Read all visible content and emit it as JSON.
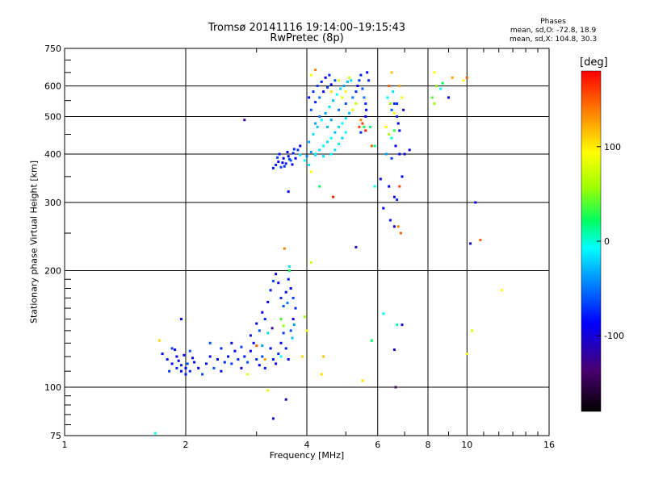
{
  "title": "Tromsø 20141116 19:14:00–19:15:43",
  "subtitle": "RwPretec (8p)",
  "info": {
    "heading": "Phases",
    "o_stats": "mean, sd,O: -72.8, 18.9",
    "x_stats": "mean, sd,X: 104.8, 30.3"
  },
  "colors": {
    "background": "#ffffff",
    "axis": "#000000"
  },
  "chart_data": {
    "type": "scatter",
    "title": "Tromsø 20141116 19:14:00–19:15:43",
    "subtitle": "RwPretec (8p)",
    "xlabel": "Frequency [MHz]",
    "ylabel": "Stationary phase Virtual Height [km]",
    "xscale": "log",
    "yscale": "log",
    "xlim": [
      1,
      16
    ],
    "ylim": [
      75,
      750
    ],
    "xticks": [
      1,
      2,
      4,
      6,
      8,
      10,
      16
    ],
    "yticks": [
      75,
      100,
      200,
      300,
      400,
      500,
      600,
      750
    ],
    "grid": true,
    "colorbar": {
      "label": "[deg]",
      "range": [
        -180,
        180
      ],
      "ticks": [
        100,
        0,
        -100
      ],
      "colormap": "rainbow"
    },
    "points": [
      [
        1.75,
        122,
        -100
      ],
      [
        1.8,
        118,
        -95
      ],
      [
        1.85,
        115,
        -100
      ],
      [
        1.9,
        112,
        -90
      ],
      [
        1.95,
        110,
        -100
      ],
      [
        2.0,
        108,
        -95
      ],
      [
        2.05,
        110,
        -90
      ],
      [
        2.1,
        116,
        -100
      ],
      [
        1.85,
        126,
        -85
      ],
      [
        1.9,
        120,
        -105
      ],
      [
        1.95,
        114,
        -90
      ],
      [
        2.0,
        112,
        -100
      ],
      [
        2.05,
        124,
        -80
      ],
      [
        1.82,
        110,
        -85
      ],
      [
        1.88,
        125,
        -100
      ],
      [
        1.92,
        117,
        -105
      ],
      [
        1.98,
        121,
        -95
      ],
      [
        2.02,
        115,
        -80
      ],
      [
        2.08,
        119,
        -105
      ],
      [
        1.95,
        150,
        -105
      ],
      [
        1.72,
        132,
        110
      ],
      [
        1.68,
        76,
        -20
      ],
      [
        2.15,
        112,
        -100
      ],
      [
        2.2,
        108,
        -85
      ],
      [
        2.25,
        115,
        -95
      ],
      [
        2.3,
        120,
        -100
      ],
      [
        2.35,
        112,
        -80
      ],
      [
        2.4,
        118,
        -100
      ],
      [
        2.45,
        110,
        -105
      ],
      [
        2.5,
        116,
        -90
      ],
      [
        2.55,
        120,
        -100
      ],
      [
        2.6,
        115,
        -85
      ],
      [
        2.65,
        124,
        -100
      ],
      [
        2.7,
        118,
        -90
      ],
      [
        2.75,
        112,
        -105
      ],
      [
        2.8,
        120,
        -95
      ],
      [
        2.85,
        116,
        -80
      ],
      [
        2.9,
        124,
        -100
      ],
      [
        2.95,
        130,
        -105
      ],
      [
        3.0,
        118,
        -90
      ],
      [
        3.05,
        114,
        -100
      ],
      [
        3.1,
        120,
        -85
      ],
      [
        3.15,
        112,
        -95
      ],
      [
        2.3,
        130,
        -80
      ],
      [
        2.45,
        126,
        -90
      ],
      [
        2.6,
        130,
        -100
      ],
      [
        2.75,
        127,
        -85
      ],
      [
        2.9,
        136,
        -95
      ],
      [
        3.0,
        146,
        -100
      ],
      [
        3.05,
        140,
        -80
      ],
      [
        3.1,
        156,
        -105
      ],
      [
        3.15,
        150,
        -90
      ],
      [
        3.2,
        166,
        -100
      ],
      [
        3.25,
        178,
        -95
      ],
      [
        3.3,
        188,
        -85
      ],
      [
        3.35,
        196,
        -105
      ],
      [
        3.4,
        186,
        -100
      ],
      [
        3.45,
        170,
        -90
      ],
      [
        3.5,
        162,
        -80
      ],
      [
        3.55,
        176,
        -100
      ],
      [
        3.6,
        190,
        -95
      ],
      [
        3.65,
        180,
        -105
      ],
      [
        3.7,
        170,
        -85
      ],
      [
        3.25,
        126,
        -100
      ],
      [
        3.3,
        118,
        -95
      ],
      [
        3.35,
        115,
        -105
      ],
      [
        3.4,
        122,
        -90
      ],
      [
        3.45,
        130,
        -100
      ],
      [
        3.5,
        138,
        -85
      ],
      [
        3.55,
        126,
        -95
      ],
      [
        3.6,
        118,
        -100
      ],
      [
        3.65,
        140,
        -80
      ],
      [
        3.7,
        150,
        -105
      ],
      [
        3.75,
        160,
        -90
      ],
      [
        3.72,
        145,
        -60
      ],
      [
        3.68,
        134,
        -50
      ],
      [
        3.45,
        150,
        40
      ],
      [
        3.5,
        144,
        55
      ],
      [
        3.2,
        138,
        -40
      ],
      [
        3.1,
        128,
        -60
      ],
      [
        3.15,
        118,
        130
      ],
      [
        2.85,
        108,
        90
      ],
      [
        3.2,
        98,
        90
      ],
      [
        3.3,
        83,
        -110
      ],
      [
        3.55,
        93,
        -120
      ],
      [
        3.45,
        120,
        -30
      ],
      [
        3.58,
        165,
        -70
      ],
      [
        3.62,
        205,
        -40
      ],
      [
        3.28,
        142,
        -130
      ],
      [
        3.0,
        128,
        150
      ],
      [
        3.52,
        228,
        140
      ],
      [
        3.62,
        200,
        20
      ],
      [
        3.95,
        152,
        60
      ],
      [
        4.0,
        140,
        90
      ],
      [
        3.9,
        120,
        110
      ],
      [
        4.4,
        120,
        120
      ],
      [
        4.35,
        108,
        110
      ],
      [
        4.1,
        210,
        80
      ],
      [
        5.5,
        104,
        110
      ],
      [
        6.2,
        155,
        -30
      ],
      [
        6.7,
        145,
        -10
      ],
      [
        6.6,
        125,
        -120
      ],
      [
        6.65,
        100,
        -140
      ],
      [
        5.8,
        132,
        20
      ],
      [
        6.9,
        145,
        -110
      ],
      [
        10.0,
        122,
        95
      ],
      [
        10.3,
        140,
        85
      ],
      [
        12.2,
        178,
        100
      ],
      [
        10.2,
        235,
        -110
      ],
      [
        10.8,
        240,
        150
      ],
      [
        3.35,
        375,
        -95
      ],
      [
        3.4,
        382,
        -100
      ],
      [
        3.45,
        370,
        -85
      ],
      [
        3.5,
        390,
        -105
      ],
      [
        3.55,
        378,
        -90
      ],
      [
        3.6,
        395,
        -100
      ],
      [
        3.65,
        385,
        -80
      ],
      [
        3.7,
        402,
        -95
      ],
      [
        3.75,
        390,
        -105
      ],
      [
        3.8,
        410,
        -90
      ],
      [
        3.85,
        420,
        -100
      ],
      [
        3.38,
        392,
        -85
      ],
      [
        3.42,
        400,
        -95
      ],
      [
        3.48,
        380,
        -100
      ],
      [
        3.52,
        372,
        -90
      ],
      [
        3.58,
        405,
        -105
      ],
      [
        3.62,
        388,
        -85
      ],
      [
        3.68,
        376,
        -100
      ],
      [
        3.72,
        412,
        -90
      ],
      [
        3.3,
        368,
        -95
      ],
      [
        4.0,
        395,
        -70
      ],
      [
        4.1,
        405,
        -60
      ],
      [
        4.2,
        398,
        -50
      ],
      [
        4.3,
        410,
        -40
      ],
      [
        4.4,
        420,
        -30
      ],
      [
        4.5,
        430,
        -40
      ],
      [
        4.6,
        440,
        -30
      ],
      [
        4.7,
        455,
        -50
      ],
      [
        4.8,
        470,
        -40
      ],
      [
        4.9,
        480,
        -30
      ],
      [
        5.0,
        495,
        -40
      ],
      [
        5.1,
        510,
        -50
      ],
      [
        5.2,
        520,
        -30
      ],
      [
        5.3,
        540,
        -40
      ],
      [
        4.05,
        430,
        -60
      ],
      [
        4.15,
        450,
        -40
      ],
      [
        4.25,
        470,
        -50
      ],
      [
        4.35,
        490,
        -30
      ],
      [
        4.45,
        510,
        -60
      ],
      [
        4.55,
        530,
        -40
      ],
      [
        4.65,
        550,
        -50
      ],
      [
        4.75,
        570,
        -30
      ],
      [
        4.85,
        590,
        -40
      ],
      [
        4.95,
        600,
        -60
      ],
      [
        5.05,
        615,
        -50
      ],
      [
        5.15,
        620,
        -40
      ],
      [
        4.1,
        520,
        -80
      ],
      [
        4.2,
        545,
        -90
      ],
      [
        4.3,
        560,
        -70
      ],
      [
        4.4,
        580,
        -100
      ],
      [
        4.5,
        595,
        -85
      ],
      [
        4.6,
        605,
        -95
      ],
      [
        4.7,
        620,
        -80
      ],
      [
        4.05,
        560,
        -100
      ],
      [
        4.15,
        580,
        -90
      ],
      [
        4.25,
        600,
        -85
      ],
      [
        4.35,
        615,
        -95
      ],
      [
        4.45,
        630,
        -100
      ],
      [
        4.55,
        640,
        -90
      ],
      [
        4.2,
        480,
        -60
      ],
      [
        4.3,
        500,
        -70
      ],
      [
        4.5,
        470,
        -50
      ],
      [
        4.6,
        490,
        -60
      ],
      [
        4.8,
        520,
        -70
      ],
      [
        5.0,
        540,
        -80
      ],
      [
        5.2,
        560,
        -70
      ],
      [
        5.3,
        580,
        -90
      ],
      [
        5.35,
        600,
        -100
      ],
      [
        5.4,
        620,
        -85
      ],
      [
        5.45,
        640,
        -95
      ],
      [
        5.5,
        590,
        -80
      ],
      [
        5.55,
        560,
        -70
      ],
      [
        5.6,
        540,
        -90
      ],
      [
        5.62,
        520,
        -100
      ],
      [
        5.5,
        480,
        160
      ],
      [
        5.55,
        470,
        150
      ],
      [
        5.6,
        460,
        170
      ],
      [
        5.45,
        490,
        140
      ],
      [
        5.4,
        470,
        160
      ],
      [
        5.2,
        520,
        100
      ],
      [
        5.3,
        540,
        80
      ],
      [
        4.9,
        560,
        90
      ],
      [
        5.0,
        580,
        100
      ],
      [
        4.6,
        580,
        110
      ],
      [
        4.8,
        620,
        90
      ],
      [
        5.1,
        630,
        80
      ],
      [
        4.1,
        640,
        100
      ],
      [
        4.2,
        660,
        140
      ],
      [
        5.65,
        650,
        -100
      ],
      [
        5.7,
        620,
        -90
      ],
      [
        4.6,
        400,
        -30
      ],
      [
        4.7,
        410,
        -40
      ],
      [
        4.8,
        425,
        -35
      ],
      [
        4.9,
        440,
        -45
      ],
      [
        5.0,
        455,
        -30
      ],
      [
        4.4,
        395,
        -40
      ],
      [
        4.2,
        400,
        -35
      ],
      [
        3.95,
        385,
        -30
      ],
      [
        4.05,
        375,
        -35
      ],
      [
        3.85,
        398,
        -40
      ],
      [
        4.1,
        360,
        100
      ],
      [
        4.3,
        330,
        20
      ],
      [
        3.6,
        320,
        -100
      ],
      [
        5.8,
        420,
        150
      ],
      [
        5.75,
        470,
        10
      ],
      [
        5.9,
        330,
        -20
      ],
      [
        6.3,
        470,
        100
      ],
      [
        6.4,
        450,
        60
      ],
      [
        6.5,
        440,
        -20
      ],
      [
        6.6,
        460,
        30
      ],
      [
        6.7,
        500,
        -90
      ],
      [
        6.75,
        480,
        -100
      ],
      [
        6.8,
        460,
        -95
      ],
      [
        6.65,
        420,
        -100
      ],
      [
        6.5,
        390,
        -85
      ],
      [
        6.3,
        400,
        -60
      ],
      [
        6.5,
        520,
        -80
      ],
      [
        6.6,
        540,
        -90
      ],
      [
        6.55,
        580,
        -40
      ],
      [
        6.4,
        600,
        150
      ],
      [
        6.8,
        600,
        130
      ],
      [
        6.9,
        560,
        100
      ],
      [
        6.95,
        520,
        -110
      ],
      [
        6.6,
        510,
        100
      ],
      [
        6.45,
        540,
        60
      ],
      [
        6.35,
        560,
        -30
      ],
      [
        6.7,
        540,
        -90
      ],
      [
        6.8,
        400,
        -100
      ],
      [
        7.0,
        400,
        -105
      ],
      [
        7.2,
        410,
        -110
      ],
      [
        6.6,
        310,
        -110
      ],
      [
        6.7,
        305,
        -90
      ],
      [
        6.8,
        330,
        160
      ],
      [
        6.9,
        350,
        -100
      ],
      [
        6.2,
        290,
        -100
      ],
      [
        6.45,
        270,
        -95
      ],
      [
        6.75,
        260,
        140
      ],
      [
        6.85,
        250,
        150
      ],
      [
        8.2,
        560,
        40
      ],
      [
        8.3,
        540,
        60
      ],
      [
        8.4,
        600,
        50
      ],
      [
        8.6,
        590,
        -30
      ],
      [
        8.7,
        610,
        20
      ],
      [
        9.0,
        560,
        -100
      ],
      [
        8.3,
        650,
        100
      ],
      [
        9.2,
        630,
        130
      ],
      [
        9.8,
        620,
        100
      ],
      [
        10.0,
        630,
        150
      ],
      [
        5.3,
        230,
        -120
      ],
      [
        6.1,
        345,
        -100
      ],
      [
        4.65,
        310,
        170
      ],
      [
        2.8,
        490,
        -130
      ],
      [
        6.4,
        330,
        -100
      ],
      [
        6.6,
        260,
        -110
      ],
      [
        5.9,
        420,
        10
      ],
      [
        5.55,
        470,
        20
      ],
      [
        5.45,
        455,
        -90
      ],
      [
        5.6,
        500,
        -100
      ],
      [
        6.5,
        650,
        120
      ],
      [
        10.5,
        300,
        -110
      ]
    ]
  }
}
